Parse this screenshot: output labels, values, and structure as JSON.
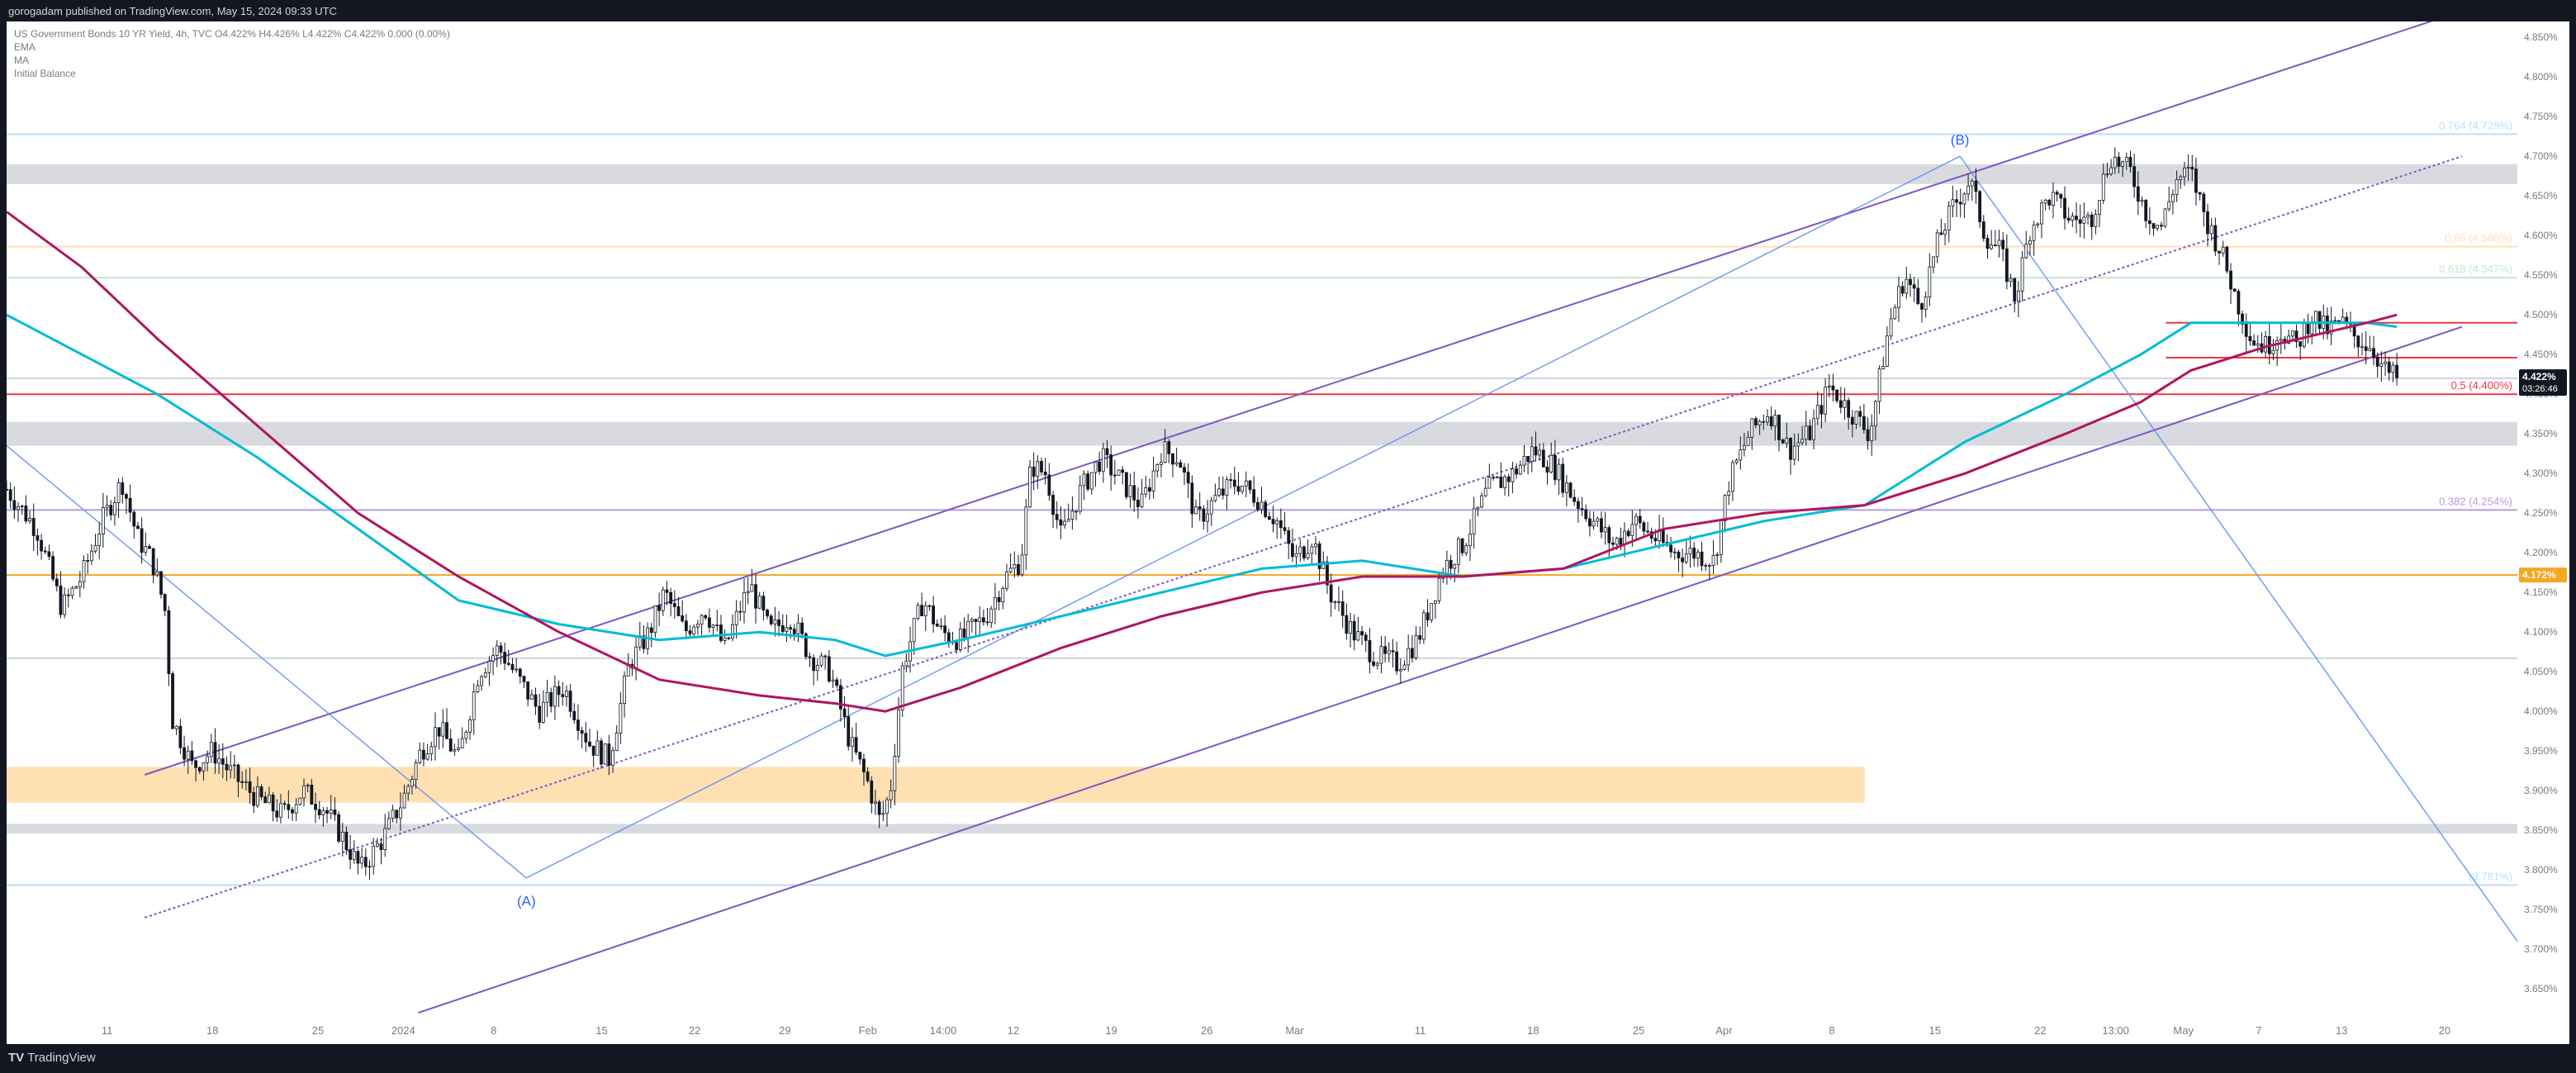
{
  "header": {
    "published": "gorogadam published on TradingView.com, May 15, 2024 09:33 UTC"
  },
  "footer": {
    "brand": "TradingView"
  },
  "legend": {
    "symbol_line": "US Government Bonds 10 YR Yield, 4h, TVC  O4.422%  H4.426%  L4.422%  C4.422%  0.000 (0.00%)",
    "indicators": [
      "EMA",
      "MA",
      "Initial Balance"
    ]
  },
  "colors": {
    "ema": "#00bcd4",
    "ma": "#b0155f",
    "channel": "#7e57c2",
    "fib_guide": "#5b8def",
    "resistance_zone": "#d8dadf",
    "demand_zone": "#ffe0b2",
    "red_level": "#f23645",
    "orange_level": "#f5a623"
  },
  "chart_data": {
    "type": "candlestick",
    "symbol": "US Government Bonds 10 YR Yield",
    "interval": "4h",
    "ylim": [
      3.62,
      4.87
    ],
    "y_ticks": [
      "4.850%",
      "4.800%",
      "4.750%",
      "4.700%",
      "4.650%",
      "4.600%",
      "4.550%",
      "4.500%",
      "4.450%",
      "4.400%",
      "4.350%",
      "4.300%",
      "4.250%",
      "4.200%",
      "4.150%",
      "4.100%",
      "4.050%",
      "4.000%",
      "3.950%",
      "3.900%",
      "3.850%",
      "3.800%",
      "3.750%",
      "3.700%",
      "3.650%"
    ],
    "x_ticks": [
      {
        "label": "11",
        "t": 0.04
      },
      {
        "label": "18",
        "t": 0.082
      },
      {
        "label": "25",
        "t": 0.124
      },
      {
        "label": "2024",
        "t": 0.158
      },
      {
        "label": "8",
        "t": 0.194
      },
      {
        "label": "15",
        "t": 0.237
      },
      {
        "label": "22",
        "t": 0.274
      },
      {
        "label": "29",
        "t": 0.31
      },
      {
        "label": "Feb",
        "t": 0.343
      },
      {
        "label": "14:00",
        "t": 0.373
      },
      {
        "label": "12",
        "t": 0.401
      },
      {
        "label": "19",
        "t": 0.44
      },
      {
        "label": "26",
        "t": 0.478
      },
      {
        "label": "Mar",
        "t": 0.513
      },
      {
        "label": "11",
        "t": 0.563
      },
      {
        "label": "18",
        "t": 0.608
      },
      {
        "label": "25",
        "t": 0.65
      },
      {
        "label": "Apr",
        "t": 0.684
      },
      {
        "label": "8",
        "t": 0.727
      },
      {
        "label": "15",
        "t": 0.768
      },
      {
        "label": "22",
        "t": 0.81
      },
      {
        "label": "13:00",
        "t": 0.84
      },
      {
        "label": "May",
        "t": 0.867
      },
      {
        "label": "7",
        "t": 0.897
      },
      {
        "label": "13",
        "t": 0.93
      },
      {
        "label": "20",
        "t": 0.971
      }
    ],
    "price_path": [
      [
        0.0,
        4.28
      ],
      [
        0.012,
        4.23
      ],
      [
        0.022,
        4.13
      ],
      [
        0.03,
        4.17
      ],
      [
        0.038,
        4.24
      ],
      [
        0.046,
        4.29
      ],
      [
        0.052,
        4.22
      ],
      [
        0.058,
        4.19
      ],
      [
        0.063,
        4.13
      ],
      [
        0.066,
        3.99
      ],
      [
        0.074,
        3.93
      ],
      [
        0.082,
        3.95
      ],
      [
        0.09,
        3.92
      ],
      [
        0.1,
        3.89
      ],
      [
        0.11,
        3.87
      ],
      [
        0.118,
        3.9
      ],
      [
        0.126,
        3.88
      ],
      [
        0.134,
        3.84
      ],
      [
        0.141,
        3.8
      ],
      [
        0.15,
        3.84
      ],
      [
        0.158,
        3.89
      ],
      [
        0.165,
        3.95
      ],
      [
        0.172,
        3.98
      ],
      [
        0.18,
        3.94
      ],
      [
        0.188,
        4.05
      ],
      [
        0.196,
        4.08
      ],
      [
        0.204,
        4.04
      ],
      [
        0.212,
        4.0
      ],
      [
        0.222,
        4.03
      ],
      [
        0.232,
        3.96
      ],
      [
        0.24,
        3.94
      ],
      [
        0.248,
        4.06
      ],
      [
        0.256,
        4.1
      ],
      [
        0.262,
        4.15
      ],
      [
        0.27,
        4.1
      ],
      [
        0.278,
        4.13
      ],
      [
        0.286,
        4.08
      ],
      [
        0.296,
        4.16
      ],
      [
        0.304,
        4.1
      ],
      [
        0.312,
        4.12
      ],
      [
        0.32,
        4.07
      ],
      [
        0.328,
        4.05
      ],
      [
        0.336,
        3.96
      ],
      [
        0.343,
        3.91
      ],
      [
        0.348,
        3.86
      ],
      [
        0.352,
        3.9
      ],
      [
        0.357,
        4.06
      ],
      [
        0.365,
        4.14
      ],
      [
        0.372,
        4.1
      ],
      [
        0.38,
        4.09
      ],
      [
        0.39,
        4.12
      ],
      [
        0.398,
        4.17
      ],
      [
        0.404,
        4.19
      ],
      [
        0.408,
        4.31
      ],
      [
        0.414,
        4.3
      ],
      [
        0.42,
        4.22
      ],
      [
        0.428,
        4.28
      ],
      [
        0.436,
        4.32
      ],
      [
        0.444,
        4.29
      ],
      [
        0.452,
        4.26
      ],
      [
        0.46,
        4.33
      ],
      [
        0.467,
        4.32
      ],
      [
        0.474,
        4.24
      ],
      [
        0.482,
        4.27
      ],
      [
        0.49,
        4.29
      ],
      [
        0.498,
        4.27
      ],
      [
        0.506,
        4.24
      ],
      [
        0.513,
        4.19
      ],
      [
        0.52,
        4.22
      ],
      [
        0.527,
        4.15
      ],
      [
        0.536,
        4.1
      ],
      [
        0.545,
        4.07
      ],
      [
        0.554,
        4.06
      ],
      [
        0.562,
        4.09
      ],
      [
        0.572,
        4.18
      ],
      [
        0.58,
        4.21
      ],
      [
        0.59,
        4.28
      ],
      [
        0.6,
        4.3
      ],
      [
        0.608,
        4.33
      ],
      [
        0.616,
        4.31
      ],
      [
        0.624,
        4.27
      ],
      [
        0.632,
        4.24
      ],
      [
        0.64,
        4.21
      ],
      [
        0.648,
        4.24
      ],
      [
        0.656,
        4.22
      ],
      [
        0.664,
        4.2
      ],
      [
        0.672,
        4.2
      ],
      [
        0.68,
        4.19
      ],
      [
        0.686,
        4.29
      ],
      [
        0.694,
        4.35
      ],
      [
        0.702,
        4.38
      ],
      [
        0.71,
        4.33
      ],
      [
        0.718,
        4.35
      ],
      [
        0.726,
        4.41
      ],
      [
        0.734,
        4.38
      ],
      [
        0.742,
        4.35
      ],
      [
        0.75,
        4.49
      ],
      [
        0.756,
        4.55
      ],
      [
        0.762,
        4.51
      ],
      [
        0.77,
        4.6
      ],
      [
        0.776,
        4.64
      ],
      [
        0.782,
        4.67
      ],
      [
        0.788,
        4.6
      ],
      [
        0.794,
        4.58
      ],
      [
        0.8,
        4.52
      ],
      [
        0.806,
        4.61
      ],
      [
        0.814,
        4.65
      ],
      [
        0.822,
        4.62
      ],
      [
        0.83,
        4.62
      ],
      [
        0.838,
        4.7
      ],
      [
        0.846,
        4.68
      ],
      [
        0.852,
        4.63
      ],
      [
        0.858,
        4.61
      ],
      [
        0.864,
        4.67
      ],
      [
        0.87,
        4.68
      ],
      [
        0.876,
        4.62
      ],
      [
        0.882,
        4.58
      ],
      [
        0.888,
        4.52
      ],
      [
        0.894,
        4.47
      ],
      [
        0.9,
        4.46
      ],
      [
        0.906,
        4.48
      ],
      [
        0.912,
        4.46
      ],
      [
        0.918,
        4.5
      ],
      [
        0.924,
        4.48
      ],
      [
        0.93,
        4.49
      ],
      [
        0.936,
        4.47
      ],
      [
        0.942,
        4.46
      ],
      [
        0.947,
        4.43
      ],
      [
        0.952,
        4.42
      ]
    ],
    "ema": [
      [
        0.0,
        4.5
      ],
      [
        0.03,
        4.45
      ],
      [
        0.06,
        4.4
      ],
      [
        0.1,
        4.32
      ],
      [
        0.14,
        4.23
      ],
      [
        0.18,
        4.14
      ],
      [
        0.22,
        4.11
      ],
      [
        0.26,
        4.09
      ],
      [
        0.3,
        4.1
      ],
      [
        0.33,
        4.09
      ],
      [
        0.35,
        4.07
      ],
      [
        0.38,
        4.09
      ],
      [
        0.42,
        4.12
      ],
      [
        0.46,
        4.15
      ],
      [
        0.5,
        4.18
      ],
      [
        0.54,
        4.19
      ],
      [
        0.58,
        4.17
      ],
      [
        0.62,
        4.18
      ],
      [
        0.66,
        4.21
      ],
      [
        0.7,
        4.24
      ],
      [
        0.74,
        4.26
      ],
      [
        0.78,
        4.34
      ],
      [
        0.82,
        4.4
      ],
      [
        0.85,
        4.45
      ],
      [
        0.87,
        4.49
      ],
      [
        0.9,
        4.49
      ],
      [
        0.94,
        4.49
      ],
      [
        0.952,
        4.485
      ]
    ],
    "ma": [
      [
        0.0,
        4.63
      ],
      [
        0.03,
        4.56
      ],
      [
        0.06,
        4.47
      ],
      [
        0.1,
        4.36
      ],
      [
        0.14,
        4.25
      ],
      [
        0.18,
        4.17
      ],
      [
        0.22,
        4.1
      ],
      [
        0.26,
        4.04
      ],
      [
        0.3,
        4.02
      ],
      [
        0.33,
        4.01
      ],
      [
        0.35,
        4.0
      ],
      [
        0.38,
        4.03
      ],
      [
        0.42,
        4.08
      ],
      [
        0.46,
        4.12
      ],
      [
        0.5,
        4.15
      ],
      [
        0.54,
        4.17
      ],
      [
        0.58,
        4.17
      ],
      [
        0.62,
        4.18
      ],
      [
        0.66,
        4.23
      ],
      [
        0.7,
        4.25
      ],
      [
        0.74,
        4.26
      ],
      [
        0.78,
        4.3
      ],
      [
        0.82,
        4.35
      ],
      [
        0.85,
        4.39
      ],
      [
        0.87,
        4.43
      ],
      [
        0.9,
        4.46
      ],
      [
        0.94,
        4.49
      ],
      [
        0.952,
        4.5
      ]
    ],
    "fib_levels": [
      {
        "label": "0.764 (4.728%)",
        "value": 4.728,
        "color": "#bbdefb"
      },
      {
        "label": "0.65 (4.586%)",
        "value": 4.586,
        "color": "#ffe0b2"
      },
      {
        "label": "0.618 (4.547%)",
        "value": 4.547,
        "color": "#c8e6c9"
      },
      {
        "label": "0.5 (4.400%)",
        "value": 4.4,
        "color": "#f23645"
      },
      {
        "label": "0.382 (4.254%)",
        "value": 4.254,
        "color": "#b39ddb"
      },
      {
        "label": "(3.781%)",
        "value": 3.781,
        "color": "#bbdefb"
      }
    ],
    "horizontal_levels": [
      {
        "value": 4.172,
        "color": "#f5a623"
      },
      {
        "value": 4.49,
        "color": "#f23645"
      },
      {
        "value": 4.446,
        "color": "#f23645"
      },
      {
        "value": 4.067,
        "color": "#d1d4dc"
      },
      {
        "value": 4.42,
        "color": "#d1d4dc"
      }
    ],
    "zones": [
      {
        "from_t": 0.0,
        "to_t": 1.0,
        "low": 4.665,
        "high": 4.69,
        "color": "#d8dadf"
      },
      {
        "from_t": 0.0,
        "to_t": 1.0,
        "low": 4.335,
        "high": 4.365,
        "color": "#d8dadf"
      },
      {
        "from_t": 0.0,
        "to_t": 0.74,
        "low": 3.885,
        "high": 3.93,
        "color": "#ffe0b2"
      },
      {
        "from_t": 0.0,
        "to_t": 1.0,
        "low": 3.846,
        "high": 3.858,
        "color": "#d8dadf"
      }
    ],
    "channel_lines": [
      {
        "p1": [
          0.055,
          3.92
        ],
        "p2": [
          0.975,
          4.88
        ],
        "style": "solid"
      },
      {
        "p1": [
          0.164,
          3.62
        ],
        "p2": [
          0.978,
          4.485
        ],
        "style": "solid"
      },
      {
        "p1": [
          0.055,
          3.74
        ],
        "p2": [
          0.978,
          4.7
        ],
        "style": "dotted"
      }
    ],
    "guide_lines": [
      {
        "p1": [
          0.0,
          4.335
        ],
        "p2": [
          0.207,
          3.79
        ]
      },
      {
        "p1": [
          0.207,
          3.79
        ],
        "p2": [
          0.778,
          4.7
        ]
      },
      {
        "p1": [
          0.778,
          4.7
        ],
        "p2": [
          1.0,
          3.71
        ]
      }
    ],
    "annotations": [
      {
        "text": "(A)",
        "t": 0.207,
        "value": 3.755
      },
      {
        "text": "(B)",
        "t": 0.778,
        "value": 4.715
      }
    ],
    "price_labels": [
      {
        "text": "4.422%",
        "sub": "03:26:46",
        "value": 4.422,
        "bg": "#131722"
      },
      {
        "text": "4.172%",
        "value": 4.172,
        "bg": "#f5a623"
      }
    ]
  }
}
